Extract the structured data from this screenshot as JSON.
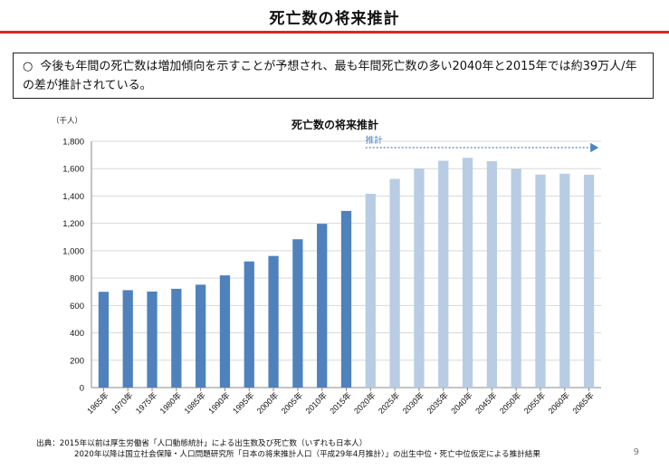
{
  "page": {
    "title": "死亡数の将来推計",
    "summary_bullet": "○",
    "summary_text": "今後も年間の死亡数は増加傾向を示すことが予想され、最も年間死亡数の多い2040年と2015年では約39万人/年の差が推計されている。",
    "source_line1": "出典：2015年以前は厚生労働省「人口動態統計」による出生数及び死亡数（いずれも日本人）",
    "source_line2": "2020年以降は国立社会保障・人口問題研究所「日本の将来推計人口（平成29年4月推計）」の出生中位・死亡中位仮定による推計結果",
    "page_number": "9"
  },
  "colors": {
    "accent_red": "#e3231b",
    "bar_actual": "#4f81bd",
    "bar_projected": "#b8cce4",
    "projection_arrow": "#4a86c5",
    "grid": "#d9d9d9"
  },
  "chart_data": {
    "type": "bar",
    "title": "死亡数の将来推計",
    "unit_label": "（千人）",
    "xlabel": "",
    "ylabel": "",
    "ylim": [
      0,
      1800
    ],
    "yticks": [
      0,
      200,
      400,
      600,
      800,
      1000,
      1200,
      1400,
      1600,
      1800
    ],
    "ytick_labels": [
      "0",
      "200",
      "400",
      "600",
      "800",
      "1,000",
      "1,200",
      "1,400",
      "1,600",
      "1,800"
    ],
    "categories": [
      "1965年",
      "1970年",
      "1975年",
      "1980年",
      "1985年",
      "1990年",
      "1995年",
      "2000年",
      "2005年",
      "2010年",
      "2015年",
      "2020年",
      "2025年",
      "2030年",
      "2035年",
      "2040年",
      "2045年",
      "2050年",
      "2055年",
      "2060年",
      "2065年"
    ],
    "values": [
      700,
      712,
      702,
      722,
      752,
      820,
      922,
      962,
      1084,
      1197,
      1291,
      1416,
      1525,
      1601,
      1658,
      1679,
      1654,
      1598,
      1557,
      1563,
      1556
    ],
    "series_kind": [
      "actual",
      "actual",
      "actual",
      "actual",
      "actual",
      "actual",
      "actual",
      "actual",
      "actual",
      "actual",
      "actual",
      "projected",
      "projected",
      "projected",
      "projected",
      "projected",
      "projected",
      "projected",
      "projected",
      "projected",
      "projected"
    ],
    "projection_label": "推計",
    "projection_start": "2020年",
    "grid": true,
    "legend": "none"
  }
}
